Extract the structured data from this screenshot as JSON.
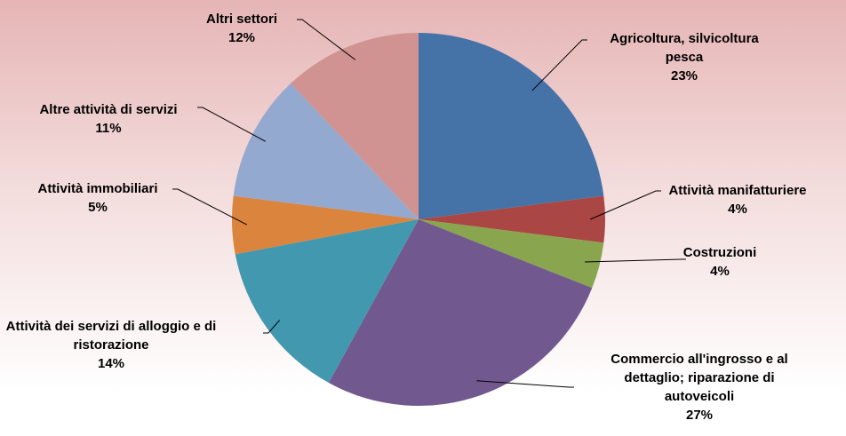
{
  "chart_data": {
    "type": "pie",
    "categories": [
      "Agricoltura, silvicoltura pesca",
      "Attività manifatturiere",
      "Costruzioni",
      "Commercio all'ingrosso e al dettaglio; riparazione di autoveicoli",
      "Attività dei servizi di alloggio e di ristorazione",
      "Attività immobiliari",
      "Altre attività di servizi",
      "Altri settori"
    ],
    "values": [
      23,
      4,
      4,
      27,
      14,
      5,
      11,
      12
    ],
    "value_labels": [
      "23%",
      "4%",
      "4%",
      "27%",
      "14%",
      "5%",
      "11%",
      "12%"
    ],
    "colors": [
      "#4572a7",
      "#aa4643",
      "#89a54e",
      "#71588f",
      "#4198af",
      "#db843d",
      "#93a9cf",
      "#d09392"
    ]
  }
}
